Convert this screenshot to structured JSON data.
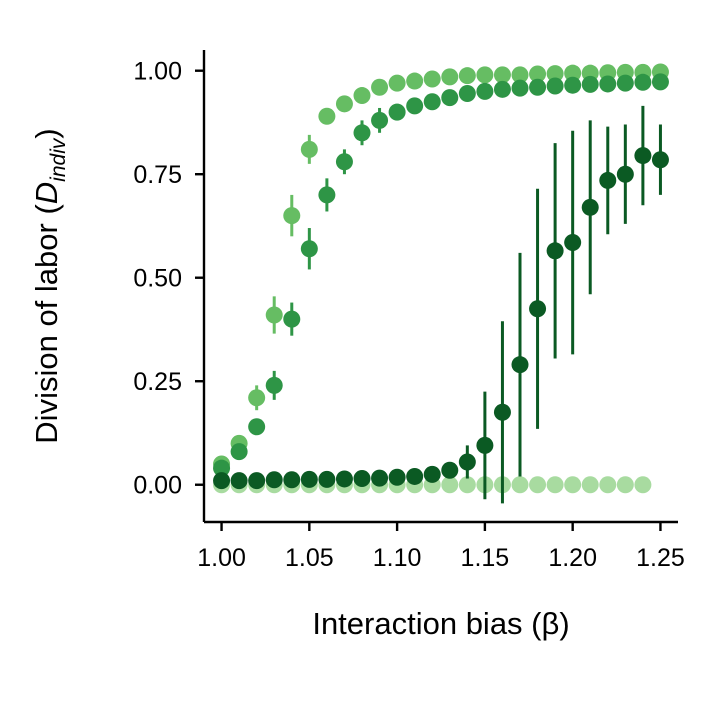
{
  "chart_data": {
    "type": "scatter",
    "title": "",
    "xlabel": "Interaction bias (β)",
    "ylabel": {
      "prefix": "Division of labor (",
      "symbol": "D",
      "subscript": "indiv",
      "suffix": ")"
    },
    "xlim": [
      0.99,
      1.26
    ],
    "ylim": [
      -0.09,
      1.05
    ],
    "xticks": [
      1.0,
      1.05,
      1.1,
      1.15,
      1.2,
      1.25
    ],
    "xtick_labels": [
      "1.00",
      "1.05",
      "1.10",
      "1.15",
      "1.20",
      "1.25"
    ],
    "yticks": [
      0.0,
      0.25,
      0.5,
      0.75,
      1.0
    ],
    "ytick_labels": [
      "0.00",
      "0.25",
      "0.50",
      "0.75",
      "1.00"
    ],
    "grid": false,
    "legend": "none",
    "series": [
      {
        "color": "#a8dba0",
        "x": [
          1.0,
          1.01,
          1.02,
          1.03,
          1.04,
          1.05,
          1.06,
          1.07,
          1.08,
          1.09,
          1.1,
          1.11,
          1.12,
          1.13,
          1.14,
          1.15,
          1.16,
          1.17,
          1.18,
          1.19,
          1.2,
          1.21,
          1.22,
          1.23,
          1.24
        ],
        "y": [
          0,
          0,
          0,
          0,
          0,
          0,
          0,
          0,
          0,
          0,
          0,
          0,
          0,
          0,
          0,
          0,
          0,
          0,
          0,
          0,
          0,
          0,
          0,
          0,
          0
        ],
        "err": [
          0,
          0,
          0,
          0,
          0,
          0,
          0,
          0,
          0,
          0,
          0,
          0,
          0,
          0,
          0,
          0,
          0,
          0,
          0,
          0,
          0,
          0,
          0,
          0,
          0
        ]
      },
      {
        "color": "#66bd63",
        "x": [
          1.0,
          1.01,
          1.02,
          1.03,
          1.04,
          1.05,
          1.06,
          1.07,
          1.08,
          1.09,
          1.1,
          1.11,
          1.12,
          1.13,
          1.14,
          1.15,
          1.16,
          1.17,
          1.18,
          1.19,
          1.2,
          1.21,
          1.22,
          1.23,
          1.24,
          1.25
        ],
        "y": [
          0.05,
          0.1,
          0.21,
          0.41,
          0.65,
          0.81,
          0.89,
          0.92,
          0.94,
          0.96,
          0.97,
          0.975,
          0.98,
          0.985,
          0.988,
          0.99,
          0.99,
          0.99,
          0.992,
          0.993,
          0.994,
          0.994,
          0.995,
          0.996,
          0.996,
          0.997
        ],
        "err": [
          0.01,
          0.015,
          0.03,
          0.045,
          0.05,
          0.035,
          0.015,
          0.01,
          0.01,
          0.008,
          0.006,
          0.005,
          0.004,
          0.004,
          0.003,
          0.003,
          0.003,
          0.003,
          0.002,
          0.002,
          0.002,
          0.002,
          0.002,
          0.002,
          0.002,
          0.002
        ]
      },
      {
        "color": "#2e9546",
        "x": [
          1.0,
          1.01,
          1.02,
          1.03,
          1.04,
          1.05,
          1.06,
          1.07,
          1.08,
          1.09,
          1.1,
          1.11,
          1.12,
          1.13,
          1.14,
          1.15,
          1.16,
          1.17,
          1.18,
          1.19,
          1.2,
          1.21,
          1.22,
          1.23,
          1.24,
          1.25
        ],
        "y": [
          0.04,
          0.08,
          0.14,
          0.24,
          0.4,
          0.57,
          0.7,
          0.78,
          0.85,
          0.88,
          0.9,
          0.915,
          0.925,
          0.935,
          0.945,
          0.95,
          0.955,
          0.958,
          0.96,
          0.963,
          0.965,
          0.967,
          0.968,
          0.97,
          0.972,
          0.973
        ],
        "err": [
          0.01,
          0.012,
          0.015,
          0.035,
          0.04,
          0.05,
          0.04,
          0.03,
          0.03,
          0.03,
          0.02,
          0.015,
          0.012,
          0.01,
          0.008,
          0.007,
          0.006,
          0.006,
          0.005,
          0.005,
          0.005,
          0.005,
          0.004,
          0.004,
          0.004,
          0.004
        ]
      },
      {
        "color": "#0b5a23",
        "x": [
          1.0,
          1.01,
          1.02,
          1.03,
          1.04,
          1.05,
          1.06,
          1.07,
          1.08,
          1.09,
          1.1,
          1.11,
          1.12,
          1.13,
          1.14,
          1.15,
          1.16,
          1.17,
          1.18,
          1.19,
          1.2,
          1.21,
          1.22,
          1.23,
          1.24,
          1.25
        ],
        "y": [
          0.01,
          0.01,
          0.01,
          0.012,
          0.012,
          0.013,
          0.013,
          0.014,
          0.015,
          0.016,
          0.018,
          0.02,
          0.025,
          0.035,
          0.055,
          0.095,
          0.175,
          0.29,
          0.425,
          0.565,
          0.585,
          0.67,
          0.735,
          0.75,
          0.795,
          0.785
        ],
        "err": [
          0.003,
          0.003,
          0.003,
          0.003,
          0.003,
          0.003,
          0.003,
          0.003,
          0.004,
          0.004,
          0.005,
          0.006,
          0.008,
          0.015,
          0.04,
          0.13,
          0.22,
          0.27,
          0.29,
          0.26,
          0.27,
          0.21,
          0.13,
          0.12,
          0.12,
          0.085
        ]
      }
    ]
  }
}
